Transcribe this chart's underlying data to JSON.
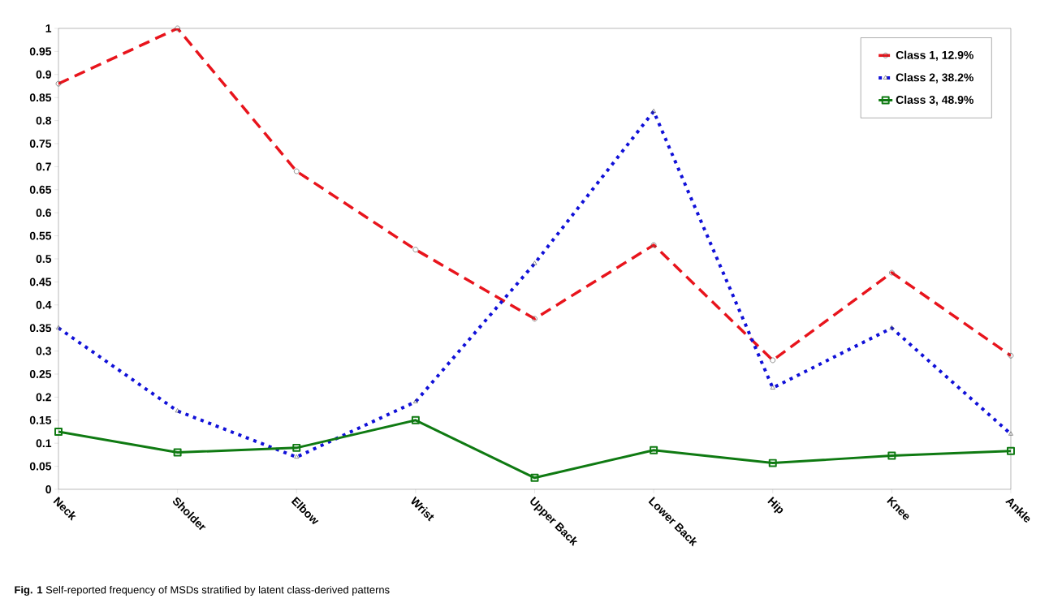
{
  "chart_data": {
    "type": "line",
    "categories": [
      "Neck",
      "Sholder",
      "Elbow",
      "Wrist",
      "Upper Back",
      "Lower Back",
      "Hip",
      "Knee",
      "Ankle"
    ],
    "ylim": [
      0,
      1
    ],
    "yticks": [
      0,
      0.05,
      0.1,
      0.15,
      0.2,
      0.25,
      0.3,
      0.35,
      0.4,
      0.45,
      0.5,
      0.55,
      0.6,
      0.65,
      0.7,
      0.75,
      0.8,
      0.85,
      0.9,
      0.95,
      1
    ],
    "legend": "top right",
    "grid": false,
    "series": [
      {
        "name": "Class 1, 12.9%",
        "color": "#e8141c",
        "marker": "circle",
        "line_style": "dashed",
        "values": [
          0.88,
          1.0,
          0.69,
          0.52,
          0.37,
          0.53,
          0.28,
          0.47,
          0.29
        ]
      },
      {
        "name": "Class 2, 38.2%",
        "color": "#1010d8",
        "marker": "triangle",
        "line_style": "dotted",
        "values": [
          0.35,
          0.17,
          0.07,
          0.19,
          0.49,
          0.82,
          0.22,
          0.35,
          0.12
        ]
      },
      {
        "name": "Class 3, 48.9%",
        "color": "#0f7a12",
        "marker": "square",
        "line_style": "solid",
        "values": [
          0.125,
          0.08,
          0.09,
          0.15,
          0.025,
          0.085,
          0.057,
          0.073,
          0.083
        ]
      }
    ],
    "annotations": [
      "**Fig. 1** Self-reported frequency of MSDs stratified by latent class-derived patterns"
    ]
  }
}
